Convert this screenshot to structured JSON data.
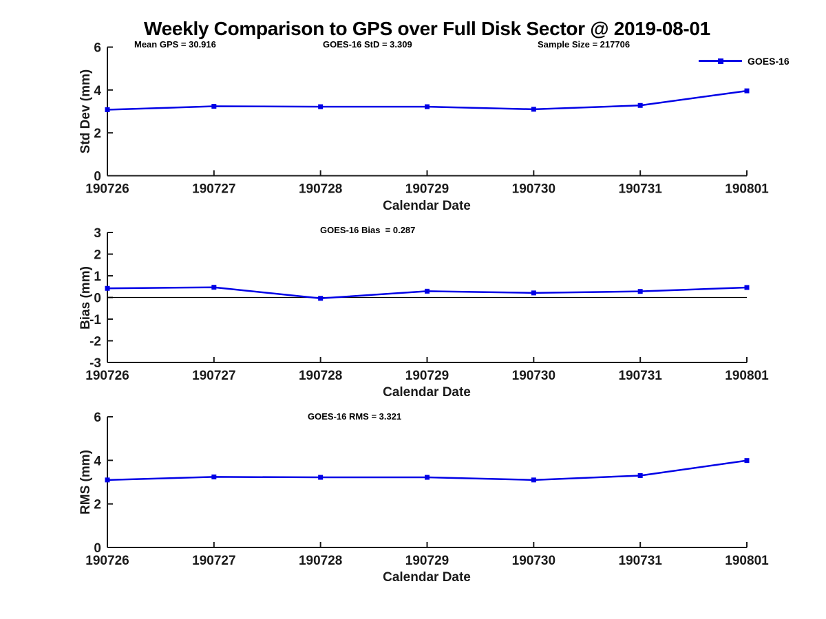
{
  "page": {
    "title": "Weekly Comparison to GPS over Full Disk Sector @ 2019-08-01"
  },
  "legend": {
    "label": "GOES-16",
    "color": "#0000e6",
    "position": "outside-top-right"
  },
  "chart_data": [
    {
      "type": "line",
      "id": "std-dev",
      "annotations": [
        "Mean GPS = 30.916",
        "GOES-16 StD = 3.309",
        "Sample Size = 217706"
      ],
      "categories": [
        "190726",
        "190727",
        "190728",
        "190729",
        "190730",
        "190731",
        "190801"
      ],
      "series": [
        {
          "name": "GOES-16",
          "color": "#0000e6",
          "marker": "square",
          "values": [
            3.08,
            3.24,
            3.22,
            3.22,
            3.1,
            3.28,
            3.96
          ]
        }
      ],
      "xlabel": "Calendar Date",
      "ylabel": "Std Dev (mm)",
      "ylim": [
        0,
        6
      ],
      "yticks": [
        0,
        2,
        4,
        6
      ],
      "grid": false,
      "zero_line": false
    },
    {
      "type": "line",
      "id": "bias",
      "annotations": [
        "GOES-16 Bias  = 0.287"
      ],
      "categories": [
        "190726",
        "190727",
        "190728",
        "190729",
        "190730",
        "190731",
        "190801"
      ],
      "series": [
        {
          "name": "GOES-16",
          "color": "#0000e6",
          "marker": "square",
          "values": [
            0.42,
            0.47,
            -0.04,
            0.29,
            0.21,
            0.28,
            0.46
          ]
        }
      ],
      "xlabel": "Calendar Date",
      "ylabel": "Bias (mm)",
      "ylim": [
        -3,
        3
      ],
      "yticks": [
        -3,
        -2,
        -1,
        0,
        1,
        2,
        3
      ],
      "grid": false,
      "zero_line": true
    },
    {
      "type": "line",
      "id": "rms",
      "annotations": [
        "GOES-16 RMS = 3.321"
      ],
      "categories": [
        "190726",
        "190727",
        "190728",
        "190729",
        "190730",
        "190731",
        "190801"
      ],
      "series": [
        {
          "name": "GOES-16",
          "color": "#0000e6",
          "marker": "square",
          "values": [
            3.1,
            3.24,
            3.22,
            3.22,
            3.1,
            3.3,
            3.99
          ]
        }
      ],
      "xlabel": "Calendar Date",
      "ylabel": "RMS (mm)",
      "ylim": [
        0,
        6
      ],
      "yticks": [
        0,
        2,
        4,
        6
      ],
      "grid": false,
      "zero_line": false
    }
  ]
}
